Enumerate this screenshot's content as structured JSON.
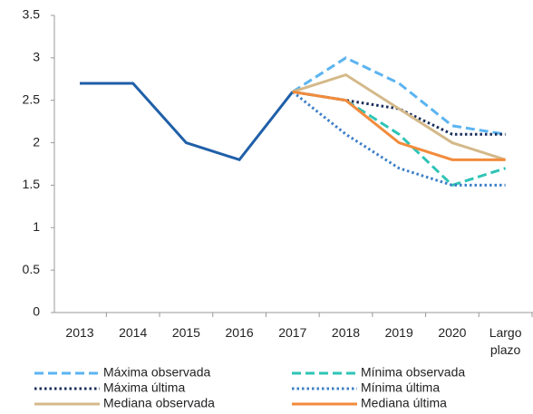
{
  "chart_data": {
    "type": "line",
    "categories": [
      "2013",
      "2014",
      "2015",
      "2016",
      "2017",
      "2018",
      "2019",
      "2020",
      "Largo plazo"
    ],
    "series": [
      {
        "color": "#1f5fa8",
        "dash": "solid",
        "values": [
          2.7,
          2.7,
          2.0,
          1.8,
          2.6,
          null,
          null,
          null,
          null
        ]
      },
      {
        "name": "Máxima observada",
        "color": "#5bb4f0",
        "dash": "dashed",
        "values": [
          null,
          null,
          null,
          null,
          2.6,
          3.0,
          2.7,
          2.2,
          2.1
        ]
      },
      {
        "name": "Mínima observada",
        "color": "#2ec4b6",
        "dash": "dashed",
        "values": [
          null,
          null,
          null,
          null,
          2.6,
          2.5,
          2.1,
          1.5,
          1.7
        ]
      },
      {
        "name": "Máxima última",
        "color": "#1a2e5a",
        "dash": "dotted",
        "values": [
          null,
          null,
          null,
          null,
          2.6,
          2.5,
          2.4,
          2.1,
          2.1
        ]
      },
      {
        "name": "Mínima última",
        "color": "#3d7fc7",
        "dash": "dotted",
        "values": [
          null,
          null,
          null,
          null,
          2.6,
          2.1,
          1.7,
          1.5,
          1.5
        ]
      },
      {
        "name": "Mediana observada",
        "color": "#d4b98a",
        "dash": "solid",
        "values": [
          null,
          null,
          null,
          null,
          2.6,
          2.8,
          2.4,
          2.0,
          1.8
        ]
      },
      {
        "name": "Mediana última",
        "color": "#f28b3c",
        "dash": "solid",
        "values": [
          null,
          null,
          null,
          null,
          2.6,
          2.5,
          2.0,
          1.8,
          1.8
        ]
      }
    ],
    "ylim": [
      0,
      3.5
    ],
    "yticks": [
      0,
      0.5,
      1,
      1.5,
      2,
      2.5,
      3,
      3.5
    ],
    "grid": false
  }
}
